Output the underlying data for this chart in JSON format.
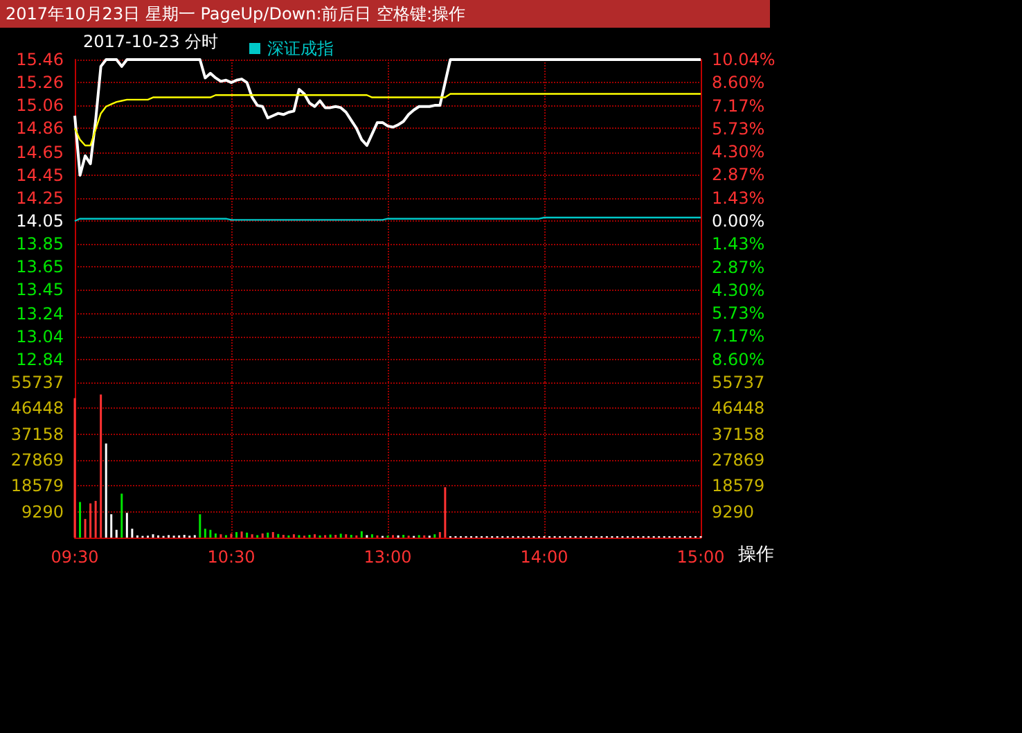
{
  "chart_data": [
    {
      "type": "line",
      "title": "2017年10月23日 星期一 PageUp/Down:前后日 空格键:操作",
      "subtitle": "2017-10-23 分时",
      "legend": "top left",
      "grid": true,
      "tick_labels": "y",
      "ylim": [
        12.64,
        15.46
      ],
      "yticks": [
        15.46,
        15.26,
        15.06,
        14.86,
        14.65,
        14.45,
        14.25,
        14.05,
        13.85,
        13.65,
        13.45,
        13.24,
        13.04,
        12.84
      ],
      "y2lim": [
        -10.04,
        10.04
      ],
      "y2ticks": [
        {
          "value": 10.04,
          "label": "10.04%"
        },
        {
          "value": 8.6,
          "label": "8.60%"
        },
        {
          "value": 7.17,
          "label": "7.17%"
        },
        {
          "value": 5.73,
          "label": "5.73%"
        },
        {
          "value": 4.3,
          "label": "4.30%"
        },
        {
          "value": 2.87,
          "label": "2.87%"
        },
        {
          "value": 1.43,
          "label": "1.43%"
        },
        {
          "value": 0,
          "label": "0.00%"
        },
        {
          "value": -1.43,
          "label": "1.43%"
        },
        {
          "value": -2.87,
          "label": "2.87%"
        },
        {
          "value": -4.3,
          "label": "4.30%"
        },
        {
          "value": -5.73,
          "label": "5.73%"
        },
        {
          "value": -7.17,
          "label": "7.17%"
        },
        {
          "value": -8.6,
          "label": "8.60%"
        }
      ],
      "series": [
        {
          "color": "#ffffff",
          "values": [
            14.97,
            14.45,
            14.62,
            14.55,
            14.93,
            15.4,
            15.46,
            15.46,
            15.46,
            15.4,
            15.46,
            15.46,
            15.46,
            15.46,
            15.46,
            15.46,
            15.46,
            15.46,
            15.46,
            15.46,
            15.46,
            15.46,
            15.46,
            15.46,
            15.46,
            15.3,
            15.34,
            15.3,
            15.27,
            15.28,
            15.26,
            15.28,
            15.29,
            15.26,
            15.13,
            15.06,
            15.05,
            14.95,
            14.97,
            14.99,
            14.98,
            15.0,
            15.01,
            15.2,
            15.16,
            15.08,
            15.05,
            15.1,
            15.04,
            15.04,
            15.05,
            15.04,
            15.0,
            14.93,
            14.86,
            14.76,
            14.71,
            14.81,
            14.91,
            14.91,
            14.88,
            14.87,
            14.89,
            14.92,
            14.98,
            15.02,
            15.05,
            15.05,
            15.05,
            15.06,
            15.06,
            15.26,
            15.46,
            15.46,
            15.46,
            15.46,
            15.46,
            15.46,
            15.46,
            15.46,
            15.46,
            15.46,
            15.46,
            15.46,
            15.46,
            15.46,
            15.46,
            15.46,
            15.46,
            15.46,
            15.46,
            15.46,
            15.46,
            15.46,
            15.46,
            15.46,
            15.46,
            15.46,
            15.46,
            15.46,
            15.46,
            15.46,
            15.46,
            15.46,
            15.46,
            15.46,
            15.46,
            15.46,
            15.46,
            15.46,
            15.46,
            15.46,
            15.46,
            15.46,
            15.46,
            15.46,
            15.46,
            15.46,
            15.46,
            15.46,
            15.46
          ]
        },
        {
          "color": "#ffff00",
          "values": [
            14.86,
            14.76,
            14.71,
            14.71,
            14.85,
            14.99,
            15.05,
            15.07,
            15.09,
            15.1,
            15.11,
            15.11,
            15.11,
            15.11,
            15.11,
            15.13,
            15.13,
            15.13,
            15.13,
            15.13,
            15.13,
            15.13,
            15.13,
            15.13,
            15.13,
            15.13,
            15.13,
            15.15,
            15.15,
            15.15,
            15.15,
            15.15,
            15.15,
            15.15,
            15.15,
            15.15,
            15.15,
            15.15,
            15.15,
            15.15,
            15.15,
            15.15,
            15.15,
            15.15,
            15.15,
            15.15,
            15.15,
            15.15,
            15.15,
            15.15,
            15.15,
            15.15,
            15.15,
            15.15,
            15.15,
            15.15,
            15.15,
            15.13,
            15.13,
            15.13,
            15.13,
            15.13,
            15.13,
            15.13,
            15.13,
            15.13,
            15.13,
            15.13,
            15.13,
            15.13,
            15.13,
            15.13,
            15.16,
            15.16,
            15.16,
            15.16,
            15.16,
            15.16,
            15.16,
            15.16,
            15.16,
            15.16,
            15.16,
            15.16,
            15.16,
            15.16,
            15.16,
            15.16,
            15.16,
            15.16,
            15.16,
            15.16,
            15.16,
            15.16,
            15.16,
            15.16,
            15.16,
            15.16,
            15.16,
            15.16,
            15.16,
            15.16,
            15.16,
            15.16,
            15.16,
            15.16,
            15.16,
            15.16,
            15.16,
            15.16,
            15.16,
            15.16,
            15.16,
            15.16,
            15.16,
            15.16,
            15.16,
            15.16,
            15.16,
            15.16,
            15.16
          ]
        },
        {
          "name": "深证成指",
          "color": "#00c8c8",
          "values": [
            14.05,
            14.07,
            14.07,
            14.07,
            14.07,
            14.07,
            14.07,
            14.07,
            14.07,
            14.07,
            14.07,
            14.07,
            14.07,
            14.07,
            14.07,
            14.07,
            14.07,
            14.07,
            14.07,
            14.07,
            14.07,
            14.07,
            14.07,
            14.07,
            14.07,
            14.07,
            14.07,
            14.07,
            14.07,
            14.07,
            14.06,
            14.06,
            14.06,
            14.06,
            14.06,
            14.06,
            14.06,
            14.06,
            14.06,
            14.06,
            14.06,
            14.06,
            14.06,
            14.06,
            14.06,
            14.06,
            14.06,
            14.06,
            14.06,
            14.06,
            14.06,
            14.06,
            14.06,
            14.06,
            14.06,
            14.06,
            14.06,
            14.06,
            14.06,
            14.06,
            14.07,
            14.07,
            14.07,
            14.07,
            14.07,
            14.07,
            14.07,
            14.07,
            14.07,
            14.07,
            14.07,
            14.07,
            14.07,
            14.07,
            14.07,
            14.07,
            14.07,
            14.07,
            14.07,
            14.07,
            14.07,
            14.07,
            14.07,
            14.07,
            14.07,
            14.07,
            14.07,
            14.07,
            14.07,
            14.07,
            14.08,
            14.08,
            14.08,
            14.08,
            14.08,
            14.08,
            14.08,
            14.08,
            14.08,
            14.08,
            14.08,
            14.08,
            14.08,
            14.08,
            14.08,
            14.08,
            14.08,
            14.08,
            14.08,
            14.08,
            14.08,
            14.08,
            14.08,
            14.08,
            14.08,
            14.08,
            14.08,
            14.08,
            14.08,
            14.08,
            14.08
          ]
        }
      ]
    },
    {
      "type": "bar",
      "grid": true,
      "annotations": [
        "操作"
      ],
      "categories": [
        "09:30",
        null,
        null,
        null,
        null,
        null,
        null,
        null,
        null,
        null,
        null,
        null,
        null,
        null,
        null,
        null,
        null,
        null,
        null,
        null,
        null,
        null,
        null,
        null,
        null,
        null,
        null,
        null,
        null,
        null,
        "10:30",
        null,
        null,
        null,
        null,
        null,
        null,
        null,
        null,
        null,
        null,
        null,
        null,
        null,
        null,
        null,
        null,
        null,
        null,
        null,
        null,
        null,
        null,
        null,
        null,
        null,
        null,
        null,
        null,
        null,
        "13:00",
        null,
        null,
        null,
        null,
        null,
        null,
        null,
        null,
        null,
        null,
        null,
        null,
        null,
        null,
        null,
        null,
        null,
        null,
        null,
        null,
        null,
        null,
        null,
        null,
        null,
        null,
        null,
        null,
        null,
        "14:00",
        null,
        null,
        null,
        null,
        null,
        null,
        null,
        null,
        null,
        null,
        null,
        null,
        null,
        null,
        null,
        null,
        null,
        null,
        null,
        null,
        null,
        null,
        null,
        null,
        null,
        null,
        null,
        null,
        null,
        "15:00"
      ],
      "ylim": [
        0,
        55737
      ],
      "yticks": [
        55737,
        46448,
        37158,
        27869,
        18579,
        9290
      ],
      "y2lim": [
        0,
        55737
      ],
      "y2ticks": [
        55737,
        46448,
        37158,
        27869,
        18579,
        9290
      ],
      "values": [
        50100,
        12800,
        6700,
        12300,
        13200,
        51400,
        33800,
        8400,
        2800,
        15800,
        8900,
        3200,
        800,
        600,
        700,
        1200,
        800,
        600,
        900,
        700,
        800,
        1000,
        700,
        900,
        8400,
        3200,
        2800,
        1500,
        1200,
        900,
        1400,
        2000,
        2200,
        1800,
        1200,
        900,
        1500,
        1800,
        2000,
        1300,
        1000,
        800,
        1200,
        900,
        700,
        1000,
        1200,
        800,
        900,
        1100,
        1000,
        1400,
        1200,
        1000,
        800,
        2300,
        900,
        1200,
        800,
        600,
        700,
        900,
        800,
        1000,
        700,
        600,
        900,
        800,
        700,
        1200,
        2000,
        18100,
        500,
        500,
        500,
        500,
        500,
        500,
        500,
        500,
        500,
        500,
        500,
        500,
        500,
        500,
        500,
        500,
        500,
        500,
        500,
        500,
        500,
        500,
        500,
        500,
        500,
        500,
        500,
        500,
        500,
        500,
        500,
        500,
        500,
        500,
        500,
        500,
        500,
        500,
        500,
        500,
        500,
        500,
        500,
        500,
        500,
        500,
        500,
        500,
        500
      ],
      "colors": [
        "#ff3232",
        "#00e600",
        "#ff3232",
        "#ff3232",
        "#ff3232",
        "#ff3232",
        "#ffffff",
        "#ffffff",
        "#ffffff",
        "#00e600",
        "#ffffff",
        "#ffffff",
        "#ffffff",
        "#ffffff",
        "#ffffff",
        "#ffffff",
        "#ffffff",
        "#ffffff",
        "#ffffff",
        "#ffffff",
        "#ffffff",
        "#ffffff",
        "#ffffff",
        "#ffffff",
        "#00e600",
        "#00e600",
        "#00e600",
        "#00e600",
        "#ff3232",
        "#00e600",
        "#ff3232",
        "#00e600",
        "#ff3232",
        "#00e600",
        "#ff3232",
        "#00e600",
        "#ff3232",
        "#00e600",
        "#ff3232",
        "#00e600",
        "#ff3232",
        "#00e600",
        "#ff3232",
        "#00e600",
        "#ff3232",
        "#00e600",
        "#ff3232",
        "#00e600",
        "#ff3232",
        "#00e600",
        "#ff3232",
        "#00e600",
        "#ff3232",
        "#00e600",
        "#ff3232",
        "#00e600",
        "#ffffff",
        "#00e600",
        "#ff3232",
        "#ffffff",
        "#00e600",
        "#ff3232",
        "#ffffff",
        "#00e600",
        "#ff3232",
        "#ffffff",
        "#00e600",
        "#ff3232",
        "#ffffff",
        "#00e600",
        "#ff3232",
        "#ff3232",
        "#ffffff",
        "#ffffff",
        "#ffffff",
        "#ffffff",
        "#ffffff",
        "#ffffff",
        "#ffffff",
        "#ffffff",
        "#ffffff",
        "#ffffff",
        "#ffffff",
        "#ffffff",
        "#ffffff",
        "#ffffff",
        "#ffffff",
        "#ffffff",
        "#ffffff",
        "#ffffff",
        "#ffffff",
        "#ffffff",
        "#ffffff",
        "#ffffff",
        "#ffffff",
        "#ffffff",
        "#ffffff",
        "#ffffff",
        "#ffffff",
        "#ffffff",
        "#ffffff",
        "#ffffff",
        "#ffffff",
        "#ffffff",
        "#ffffff",
        "#ffffff",
        "#ffffff",
        "#ffffff",
        "#ffffff",
        "#ffffff",
        "#ffffff",
        "#ffffff",
        "#ffffff",
        "#ffffff",
        "#ffffff",
        "#ffffff",
        "#ffffff",
        "#ffffff",
        "#ffffff",
        "#ffffff",
        "#ffffff"
      ]
    }
  ]
}
